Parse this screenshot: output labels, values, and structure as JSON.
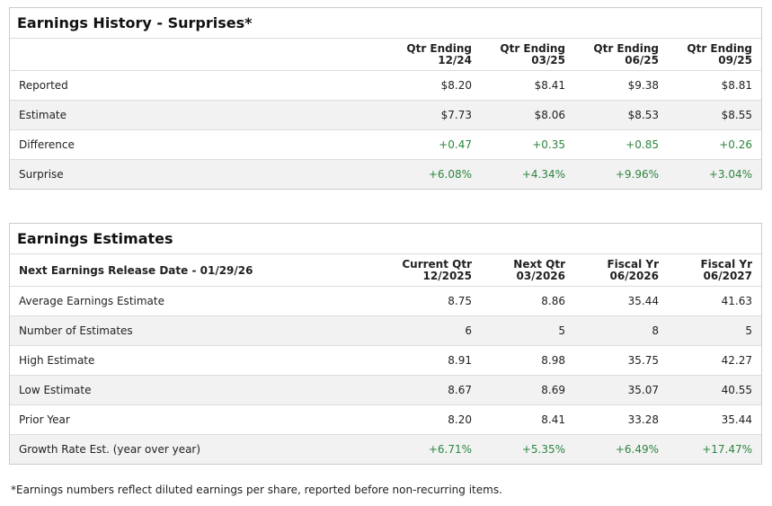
{
  "earnings_history": {
    "title": "Earnings History - Surprises*",
    "columns": [
      [
        "Qtr Ending",
        "12/24"
      ],
      [
        "Qtr Ending",
        "03/25"
      ],
      [
        "Qtr Ending",
        "06/25"
      ],
      [
        "Qtr Ending",
        "09/25"
      ]
    ],
    "rows": [
      {
        "label": "Reported",
        "values": [
          "$8.20",
          "$8.41",
          "$9.38",
          "$8.81"
        ]
      },
      {
        "label": "Estimate",
        "values": [
          "$7.73",
          "$8.06",
          "$8.53",
          "$8.55"
        ]
      },
      {
        "label": "Difference",
        "values": [
          "+0.47",
          "+0.35",
          "+0.85",
          "+0.26"
        ],
        "value_color": "#2e8540"
      },
      {
        "label": "Surprise",
        "values": [
          "+6.08%",
          "+4.34%",
          "+9.96%",
          "+3.04%"
        ],
        "value_color": "#2e8540"
      }
    ]
  },
  "earnings_estimates": {
    "title": "Earnings Estimates",
    "header_label": "Next Earnings Release Date - 01/29/26",
    "columns": [
      [
        "Current Qtr",
        "12/2025"
      ],
      [
        "Next Qtr",
        "03/2026"
      ],
      [
        "Fiscal Yr",
        "06/2026"
      ],
      [
        "Fiscal Yr",
        "06/2027"
      ]
    ],
    "rows": [
      {
        "label": "Average Earnings Estimate",
        "values": [
          "8.75",
          "8.86",
          "35.44",
          "41.63"
        ]
      },
      {
        "label": "Number of Estimates",
        "values": [
          "6",
          "5",
          "8",
          "5"
        ]
      },
      {
        "label": "High Estimate",
        "values": [
          "8.91",
          "8.98",
          "35.75",
          "42.27"
        ]
      },
      {
        "label": "Low Estimate",
        "values": [
          "8.67",
          "8.69",
          "35.07",
          "40.55"
        ]
      },
      {
        "label": "Prior Year",
        "values": [
          "8.20",
          "8.41",
          "33.28",
          "35.44"
        ]
      },
      {
        "label": "Growth Rate Est. (year over year)",
        "values": [
          "+6.71%",
          "+5.35%",
          "+6.49%",
          "+17.47%"
        ],
        "value_color": "#2e8540"
      }
    ]
  },
  "footnote": "*Earnings numbers reflect diluted earnings per share, reported before non-recurring items."
}
